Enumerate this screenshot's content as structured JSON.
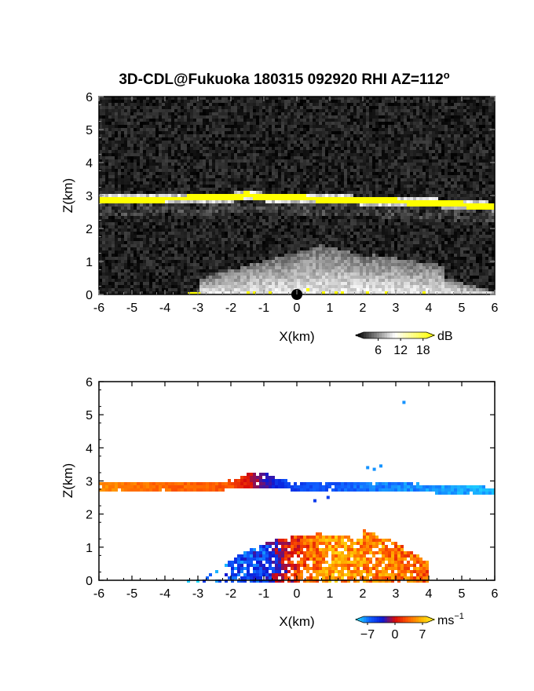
{
  "figure": {
    "title": "3D-CDL@Fukuoka 180315 092920 RHI AZ=112",
    "title_superscript": "o"
  },
  "chart_data": [
    {
      "type": "heatmap",
      "panel": "reflectivity",
      "xlabel": "X(km)",
      "ylabel": "Z(km)",
      "xlim": [
        -6,
        6
      ],
      "ylim": [
        0,
        6
      ],
      "x_ticks": [
        "-6",
        "-5",
        "-4",
        "-3",
        "-2",
        "-1",
        "0",
        "1",
        "2",
        "3",
        "4",
        "5",
        "6"
      ],
      "y_ticks": [
        "0",
        "1",
        "2",
        "3",
        "4",
        "5",
        "6"
      ],
      "colorbar": {
        "unit": "dB",
        "ticks": [
          "6",
          "12",
          "18"
        ],
        "range": [
          0,
          21
        ],
        "colors": [
          "#000000",
          "#ffffff",
          "#ffff00"
        ]
      },
      "features": [
        {
          "name": "cloud base layer",
          "z_km_at_x": [
            [
              -6,
              2.87
            ],
            [
              -2,
              2.93
            ],
            [
              -1.5,
              3.02
            ],
            [
              -1,
              2.95
            ],
            [
              0,
              2.92
            ],
            [
              2,
              2.85
            ],
            [
              4,
              2.78
            ],
            [
              6,
              2.66
            ]
          ],
          "value_db": 18
        },
        {
          "name": "near-ground echo fan",
          "x_range_km": [
            -3,
            6
          ],
          "top_z_km": 1.5,
          "value_db": 9
        }
      ]
    },
    {
      "type": "heatmap",
      "panel": "doppler velocity",
      "xlabel": "X(km)",
      "ylabel": "Z(km)",
      "xlim": [
        -6,
        6
      ],
      "ylim": [
        0,
        6
      ],
      "x_ticks": [
        "-6",
        "-5",
        "-4",
        "-3",
        "-2",
        "-1",
        "0",
        "1",
        "2",
        "3",
        "4",
        "5",
        "6"
      ],
      "y_ticks": [
        "0",
        "1",
        "2",
        "3",
        "4",
        "5",
        "6"
      ],
      "colorbar": {
        "unit": "ms",
        "unit_superscript": "−1",
        "ticks": [
          "−7",
          "0",
          "7"
        ],
        "range": [
          -10,
          10
        ],
        "colors": [
          "#20e0ff",
          "#1060ff",
          "#0a1ad8",
          "#d80a0a",
          "#ff5a00",
          "#ffb000",
          "#fff020"
        ]
      },
      "features": [
        {
          "name": "cloud base layer",
          "x_range_km": [
            -6,
            6
          ],
          "z_km": 2.87,
          "velocity_ms": [
            [
              -6,
              5
            ],
            [
              -2,
              3
            ],
            [
              -0.4,
              -5
            ],
            [
              2,
              -7
            ],
            [
              6,
              -9
            ]
          ]
        },
        {
          "name": "boundary-layer echoes",
          "x_range_km": [
            -3.3,
            4.0
          ],
          "top_z_km": 1.4,
          "velocity_ms": [
            [
              -3,
              -7
            ],
            [
              -1,
              -5
            ],
            [
              0,
              2
            ],
            [
              1,
              6
            ],
            [
              2.5,
              5
            ],
            [
              3.5,
              4
            ]
          ]
        }
      ]
    }
  ]
}
